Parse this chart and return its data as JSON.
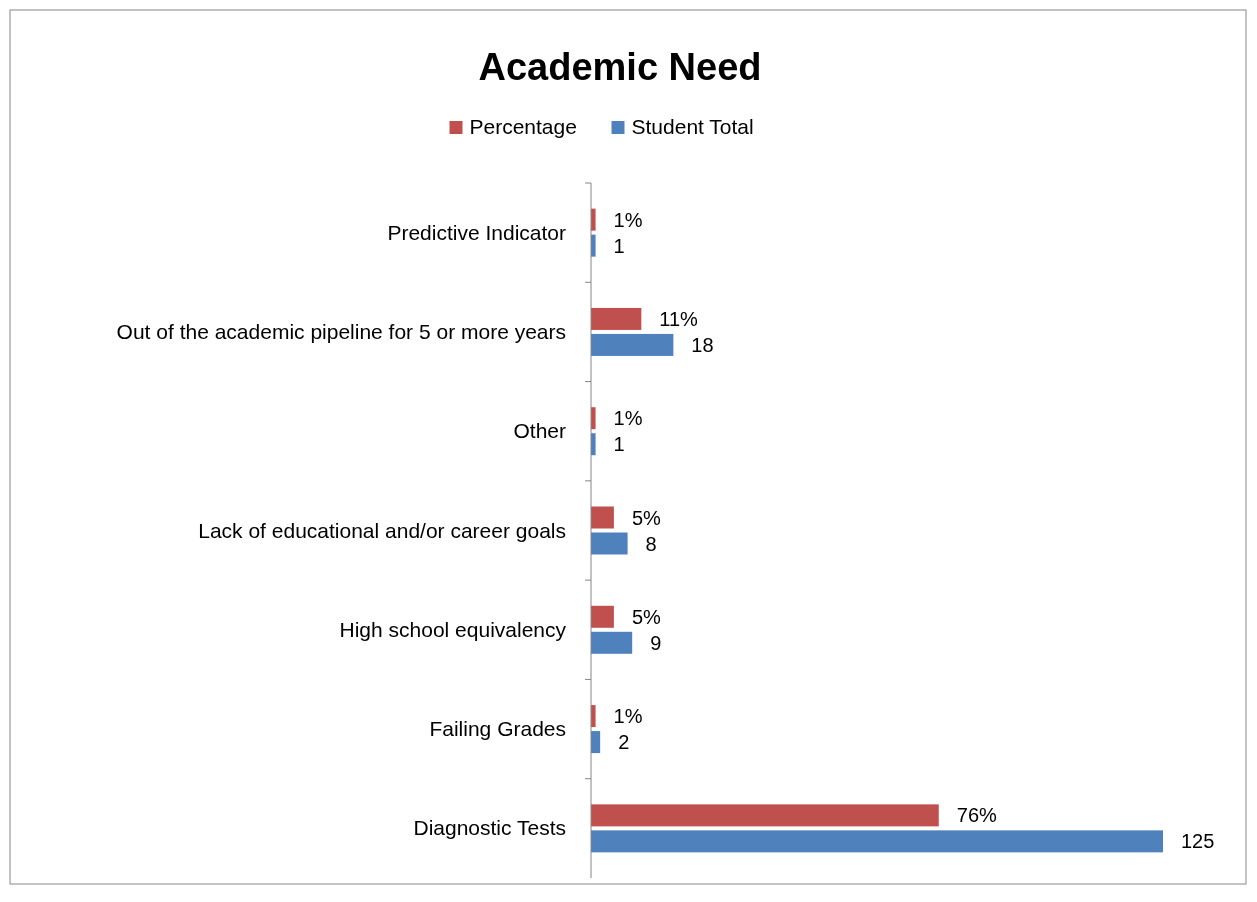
{
  "chart_data": {
    "type": "bar",
    "orientation": "horizontal",
    "title": "Academic Need",
    "categories": [
      "Predictive Indicator",
      "Out of the academic pipeline for 5 or more years",
      "Other",
      "Lack of educational and/or career goals",
      "High school equivalency",
      "Failing Grades",
      "Diagnostic Tests"
    ],
    "series": [
      {
        "name": "Percentage",
        "color": "#c0504d",
        "values": [
          1,
          11,
          1,
          5,
          5,
          1,
          76
        ],
        "value_labels": [
          "1%",
          "11%",
          "1%",
          "5%",
          "5%",
          "1%",
          "76%"
        ]
      },
      {
        "name": "Student Total",
        "color": "#4f81bd",
        "values": [
          1,
          18,
          1,
          8,
          9,
          2,
          125
        ],
        "value_labels": [
          "1",
          "18",
          "1",
          "8",
          "9",
          "2",
          "125"
        ]
      }
    ],
    "legend": "top",
    "tick_labels": "y"
  }
}
